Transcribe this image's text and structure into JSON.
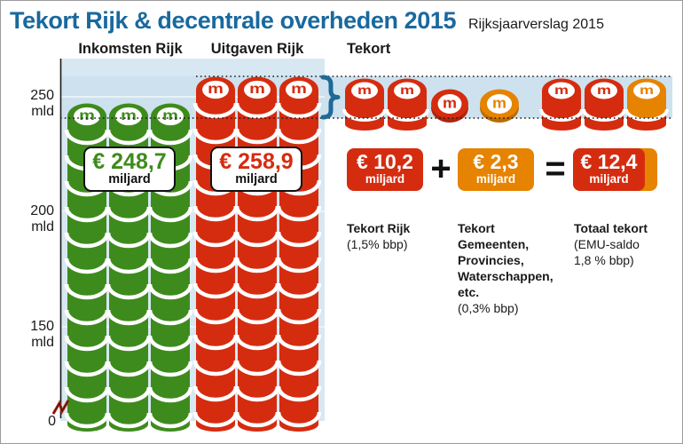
{
  "header": {
    "title": "Tekort Rijk & decentrale overheden 2015",
    "source": "Rijksjaarverslag 2015"
  },
  "column_headers": {
    "inkomsten": "Inkomsten Rijk",
    "uitgaven": "Uitgaven Rijk",
    "tekort": "Tekort"
  },
  "y_axis": {
    "tick_250": "250 mld",
    "tick_200": "200 mld",
    "tick_150": "150 mld",
    "tick_0": "0"
  },
  "income_box": {
    "amount": "€ 248,7",
    "unit": "miljard"
  },
  "expense_box": {
    "amount": "€ 258,9",
    "unit": "miljard"
  },
  "equation": {
    "plus": "+",
    "equals": "=",
    "rijk": {
      "amount": "€ 10,2",
      "unit": "miljard",
      "label": "Tekort Rijk",
      "note": "(1,5% bbp)"
    },
    "decentraal": {
      "amount": "€ 2,3",
      "unit": "miljard",
      "label": "Tekort\nGemeenten,\nProvincies,\nWaterschappen,\netc.",
      "note": "(0,3% bbp)"
    },
    "totaal": {
      "amount": "€ 12,4",
      "unit": "miljard",
      "label": "Totaal tekort",
      "note": "(EMU-saldo\n1,8 % bbp)"
    }
  },
  "colors": {
    "green": "#3e8b1d",
    "red": "#d52c10",
    "orange": "#e68300",
    "title_blue": "#19699e",
    "panel": "#d7e8f2",
    "band": "#cde2ee",
    "grid": "#e9f2f8",
    "brace": "#1f6a96",
    "axis": "#1a1a1a"
  },
  "chart_data": {
    "type": "bar",
    "variant": "pictorial-coin-stacks",
    "title": "Tekort Rijk & decentrale overheden 2015",
    "source": "Rijksjaarverslag 2015",
    "unit": "miljard €",
    "categories": [
      "Inkomsten Rijk",
      "Uitgaven Rijk"
    ],
    "values": [
      248.7,
      258.9
    ],
    "ylabel": "mld",
    "y_ticks": [
      250,
      200,
      150,
      0
    ],
    "y_tick_labels": [
      "250 mld",
      "200 mld",
      "150 mld",
      "0"
    ],
    "axis_break": true,
    "grid": true,
    "deficit_band": {
      "from": 248.7,
      "to": 258.9,
      "label": "Tekort"
    },
    "derived_values": {
      "tekort_rijk": {
        "value": 10.2,
        "unit": "miljard €",
        "note": "1,5% bbp"
      },
      "tekort_decentraal": {
        "value": 2.3,
        "unit": "miljard €",
        "entities": "Gemeenten, Provincies, Waterschappen, etc.",
        "note": "0,3% bbp"
      },
      "totaal_tekort": {
        "value": 12.4,
        "unit": "miljard €",
        "note": "EMU-saldo 1,8 % bbp"
      }
    }
  }
}
